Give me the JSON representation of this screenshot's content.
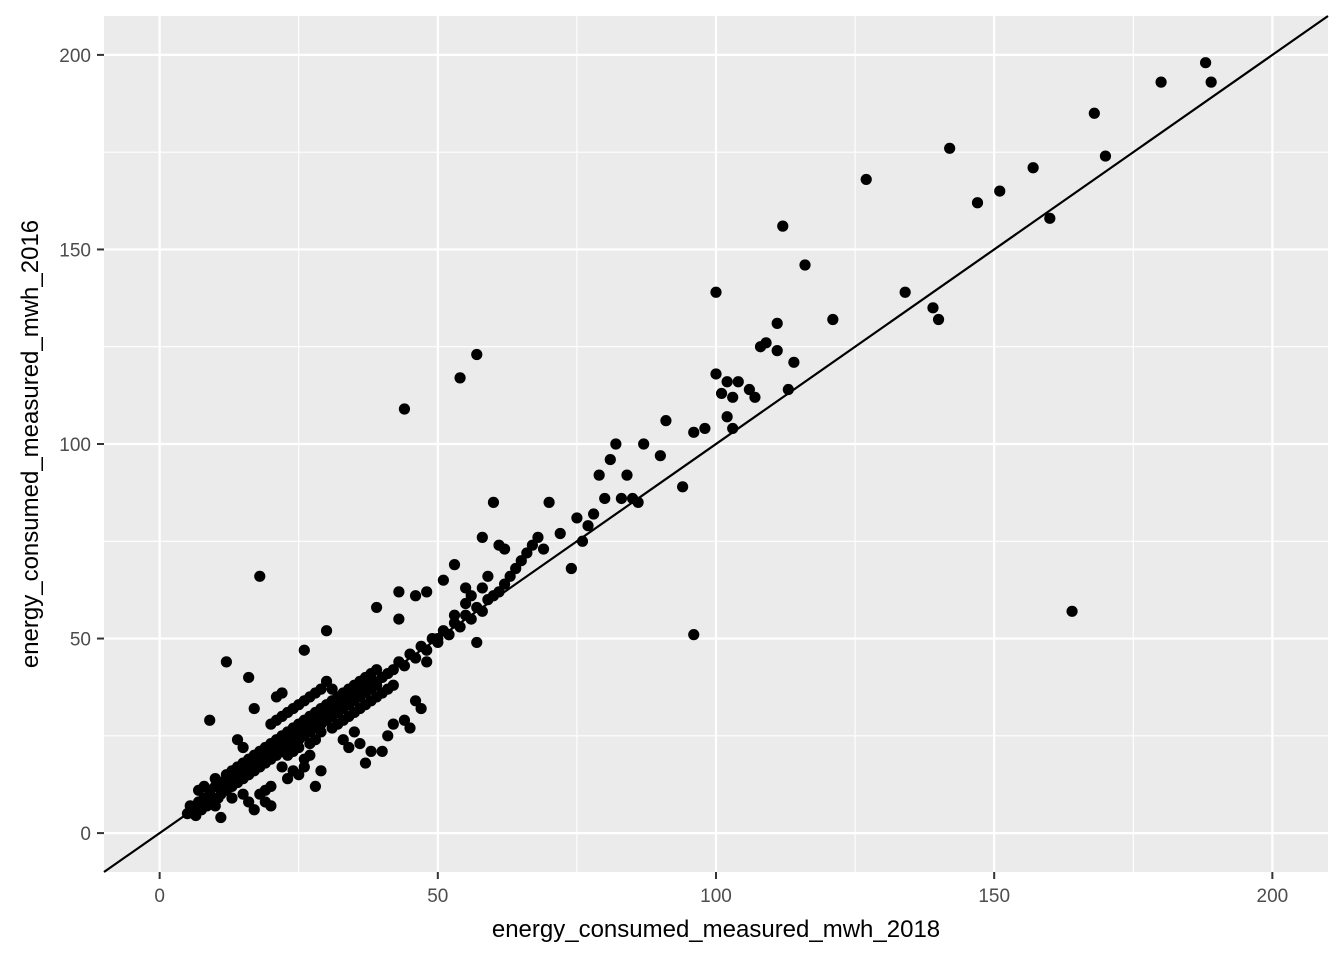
{
  "chart_data": {
    "type": "scatter",
    "title": "",
    "xlabel": "energy_consumed_measured_mwh_2018",
    "ylabel": "energy_consumed_measured_mwh_2016",
    "xlim": [
      -10,
      210
    ],
    "ylim": [
      -10,
      210
    ],
    "x_ticks": [
      0,
      50,
      100,
      150,
      200
    ],
    "y_ticks": [
      0,
      50,
      100,
      150,
      200
    ],
    "x_tick_labels": [
      "0",
      "50",
      "100",
      "150",
      "200"
    ],
    "y_tick_labels": [
      "0",
      "50",
      "100",
      "150",
      "200"
    ],
    "grid": true,
    "background_color": "#ebebeb",
    "grid_color": "#ffffff",
    "point_color": "#000000",
    "reference_line": {
      "type": "identity",
      "slope": 1,
      "intercept": 0,
      "color": "#000000"
    },
    "points": [
      [
        5,
        5
      ],
      [
        5.5,
        7
      ],
      [
        6,
        6
      ],
      [
        6.5,
        4.5
      ],
      [
        7,
        8
      ],
      [
        7.5,
        6
      ],
      [
        8,
        9
      ],
      [
        8.5,
        7
      ],
      [
        9,
        11
      ],
      [
        9,
        10
      ],
      [
        9.5,
        8
      ],
      [
        10,
        12
      ],
      [
        10,
        14
      ],
      [
        10.5,
        9
      ],
      [
        11,
        10
      ],
      [
        11,
        13
      ],
      [
        11.5,
        12
      ],
      [
        12,
        11
      ],
      [
        12,
        15
      ],
      [
        12.5,
        13
      ],
      [
        13,
        12
      ],
      [
        13,
        16
      ],
      [
        13.5,
        14
      ],
      [
        14,
        13
      ],
      [
        14,
        17
      ],
      [
        14.5,
        15
      ],
      [
        15,
        14
      ],
      [
        15,
        18
      ],
      [
        15.5,
        16
      ],
      [
        16,
        15
      ],
      [
        16,
        19
      ],
      [
        16.5,
        17
      ],
      [
        17,
        16
      ],
      [
        17,
        20
      ],
      [
        17.5,
        18
      ],
      [
        18,
        17
      ],
      [
        18,
        21
      ],
      [
        18.5,
        19
      ],
      [
        19,
        18
      ],
      [
        19,
        22
      ],
      [
        19.5,
        20
      ],
      [
        20,
        19
      ],
      [
        20,
        23
      ],
      [
        20.5,
        21
      ],
      [
        21,
        20
      ],
      [
        21,
        24
      ],
      [
        21.5,
        22
      ],
      [
        22,
        21
      ],
      [
        22,
        25
      ],
      [
        22.5,
        23
      ],
      [
        23,
        22
      ],
      [
        23,
        26
      ],
      [
        23.5,
        24
      ],
      [
        24,
        23
      ],
      [
        24,
        27
      ],
      [
        24.5,
        25
      ],
      [
        25,
        24
      ],
      [
        25,
        28
      ],
      [
        25.5,
        26
      ],
      [
        26,
        25
      ],
      [
        26,
        29
      ],
      [
        26.5,
        27
      ],
      [
        27,
        26
      ],
      [
        27,
        30
      ],
      [
        27.5,
        28
      ],
      [
        28,
        27
      ],
      [
        28,
        31
      ],
      [
        28.5,
        29
      ],
      [
        29,
        28
      ],
      [
        29,
        32
      ],
      [
        29.5,
        30
      ],
      [
        30,
        29
      ],
      [
        30,
        33
      ],
      [
        30.5,
        31
      ],
      [
        31,
        30
      ],
      [
        31,
        34
      ],
      [
        31.5,
        32
      ],
      [
        32,
        31
      ],
      [
        32,
        35
      ],
      [
        32.5,
        33
      ],
      [
        33,
        32
      ],
      [
        33,
        36
      ],
      [
        33.5,
        34
      ],
      [
        34,
        33
      ],
      [
        34,
        37
      ],
      [
        34.5,
        35
      ],
      [
        35,
        34
      ],
      [
        35,
        38
      ],
      [
        35.5,
        36
      ],
      [
        36,
        35
      ],
      [
        36,
        39
      ],
      [
        36.5,
        37
      ],
      [
        37,
        36
      ],
      [
        37,
        40
      ],
      [
        37.5,
        38
      ],
      [
        38,
        37
      ],
      [
        38,
        41
      ],
      [
        38.5,
        39
      ],
      [
        39,
        38
      ],
      [
        39,
        42
      ],
      [
        40,
        40
      ],
      [
        41,
        41
      ],
      [
        42,
        42
      ],
      [
        43,
        44
      ],
      [
        44,
        43
      ],
      [
        45,
        46
      ],
      [
        46,
        45
      ],
      [
        47,
        48
      ],
      [
        48,
        47
      ],
      [
        49,
        50
      ],
      [
        50,
        49
      ],
      [
        51,
        52
      ],
      [
        52,
        51
      ],
      [
        53,
        54
      ],
      [
        54,
        53
      ],
      [
        55,
        56
      ],
      [
        56,
        55
      ],
      [
        57,
        58
      ],
      [
        58,
        57
      ],
      [
        59,
        60
      ],
      [
        60,
        61
      ],
      [
        61,
        62
      ],
      [
        62,
        64
      ],
      [
        63,
        66
      ],
      [
        64,
        68
      ],
      [
        65,
        70
      ],
      [
        66,
        72
      ],
      [
        67,
        74
      ],
      [
        68,
        76
      ],
      [
        69,
        73
      ],
      [
        12,
        44
      ],
      [
        9,
        29
      ],
      [
        18,
        66
      ],
      [
        16,
        40
      ],
      [
        30,
        52
      ],
      [
        26,
        47
      ],
      [
        39,
        58
      ],
      [
        43,
        62
      ],
      [
        46,
        61
      ],
      [
        48,
        62
      ],
      [
        44,
        109
      ],
      [
        54,
        117
      ],
      [
        57,
        123
      ],
      [
        51,
        65
      ],
      [
        53,
        69
      ],
      [
        55,
        63
      ],
      [
        58,
        76
      ],
      [
        60,
        85
      ],
      [
        61,
        74
      ],
      [
        62,
        73
      ],
      [
        70,
        85
      ],
      [
        72,
        77
      ],
      [
        74,
        68
      ],
      [
        75,
        81
      ],
      [
        76,
        75
      ],
      [
        77,
        79
      ],
      [
        78,
        82
      ],
      [
        79,
        92
      ],
      [
        80,
        86
      ],
      [
        81,
        96
      ],
      [
        82,
        100
      ],
      [
        83,
        86
      ],
      [
        84,
        92
      ],
      [
        85,
        86
      ],
      [
        86,
        85
      ],
      [
        87,
        100
      ],
      [
        90,
        97
      ],
      [
        91,
        106
      ],
      [
        94,
        89
      ],
      [
        96,
        103
      ],
      [
        96,
        51
      ],
      [
        98,
        104
      ],
      [
        100,
        118
      ],
      [
        100,
        139
      ],
      [
        101,
        113
      ],
      [
        102,
        116
      ],
      [
        102,
        107
      ],
      [
        103,
        104
      ],
      [
        103,
        112
      ],
      [
        104,
        116
      ],
      [
        106,
        114
      ],
      [
        107,
        112
      ],
      [
        108,
        125
      ],
      [
        109,
        126
      ],
      [
        111,
        131
      ],
      [
        111,
        124
      ],
      [
        112,
        156
      ],
      [
        113,
        114
      ],
      [
        114,
        121
      ],
      [
        116,
        146
      ],
      [
        121,
        132
      ],
      [
        127,
        168
      ],
      [
        134,
        139
      ],
      [
        139,
        135
      ],
      [
        140,
        132
      ],
      [
        142,
        176
      ],
      [
        147,
        162
      ],
      [
        151,
        165
      ],
      [
        157,
        171
      ],
      [
        160,
        158
      ],
      [
        164,
        57
      ],
      [
        168,
        185
      ],
      [
        170,
        174
      ],
      [
        180,
        193
      ],
      [
        188,
        198
      ],
      [
        189,
        193
      ],
      [
        14,
        24
      ],
      [
        15,
        22
      ],
      [
        17,
        32
      ],
      [
        18,
        10
      ],
      [
        19,
        8
      ],
      [
        20,
        12
      ],
      [
        21,
        35
      ],
      [
        22,
        36
      ],
      [
        23,
        14
      ],
      [
        24,
        16
      ],
      [
        25,
        15
      ],
      [
        26,
        17
      ],
      [
        27,
        20
      ],
      [
        28,
        12
      ],
      [
        29,
        16
      ],
      [
        30,
        39
      ],
      [
        31,
        37
      ],
      [
        33,
        24
      ],
      [
        34,
        22
      ],
      [
        35,
        26
      ],
      [
        36,
        23
      ],
      [
        37,
        18
      ],
      [
        38,
        21
      ],
      [
        40,
        21
      ],
      [
        41,
        25
      ],
      [
        42,
        28
      ],
      [
        43,
        55
      ],
      [
        44,
        29
      ],
      [
        45,
        27
      ],
      [
        46,
        34
      ],
      [
        47,
        32
      ],
      [
        48,
        44
      ],
      [
        50,
        50
      ],
      [
        52,
        51
      ],
      [
        53,
        56
      ],
      [
        55,
        59
      ],
      [
        56,
        61
      ],
      [
        57,
        49
      ],
      [
        58,
        63
      ],
      [
        59,
        66
      ],
      [
        17,
        6
      ],
      [
        16,
        8
      ],
      [
        19,
        11
      ],
      [
        20,
        7
      ],
      [
        15,
        10
      ],
      [
        13,
        9
      ],
      [
        11,
        4
      ],
      [
        10,
        7
      ],
      [
        8,
        12
      ],
      [
        7,
        11
      ],
      [
        22,
        17
      ],
      [
        23,
        20
      ],
      [
        24,
        21
      ],
      [
        25,
        22
      ],
      [
        26,
        19
      ],
      [
        27,
        23
      ],
      [
        28,
        24
      ],
      [
        29,
        26
      ],
      [
        31,
        27
      ],
      [
        32,
        28
      ],
      [
        33,
        29
      ],
      [
        34,
        30
      ],
      [
        35,
        31
      ],
      [
        36,
        32
      ],
      [
        37,
        33
      ],
      [
        38,
        34
      ],
      [
        39,
        35
      ],
      [
        40,
        36
      ],
      [
        41,
        37
      ],
      [
        42,
        38
      ],
      [
        20,
        28
      ],
      [
        21,
        29
      ],
      [
        22,
        30
      ],
      [
        23,
        31
      ],
      [
        24,
        32
      ],
      [
        25,
        33
      ],
      [
        26,
        34
      ],
      [
        27,
        35
      ],
      [
        28,
        36
      ],
      [
        29,
        37
      ]
    ]
  }
}
